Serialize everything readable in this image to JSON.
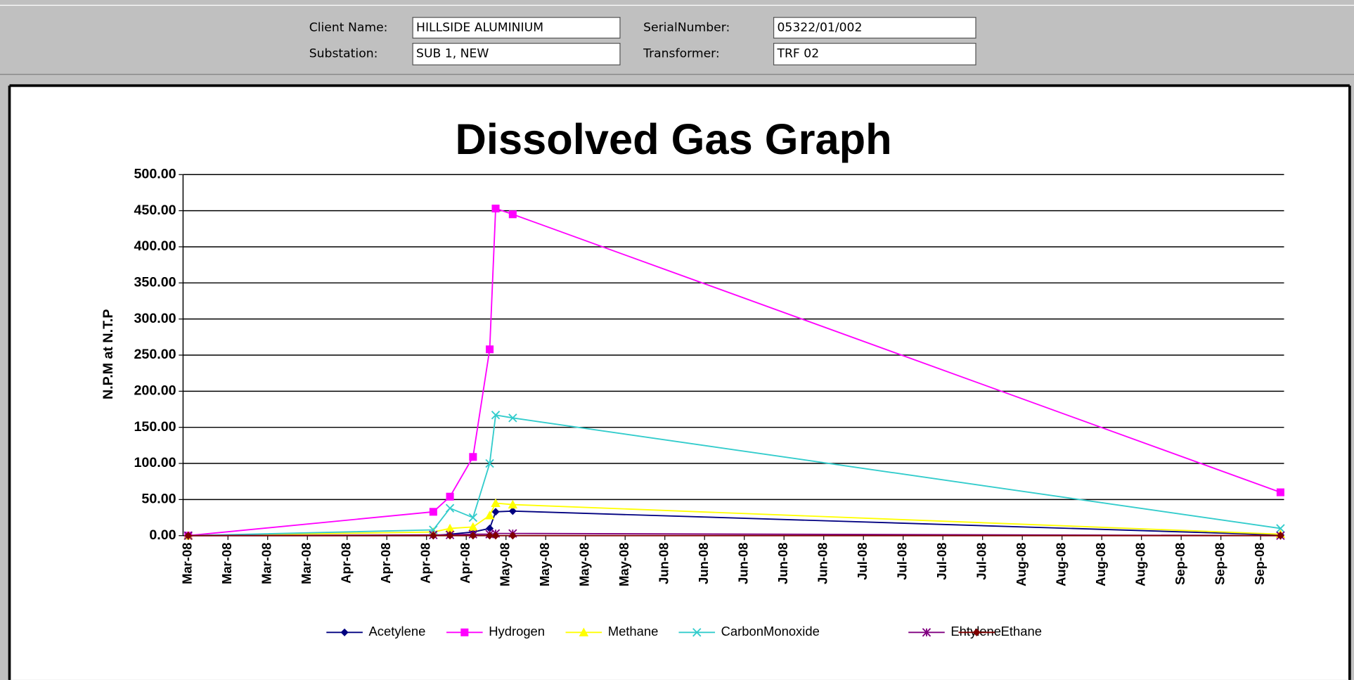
{
  "form": {
    "client_name_label": "Client Name:",
    "client_name": "HILLSIDE ALUMINIUM",
    "substation_label": "Substation:",
    "substation": "SUB 1, NEW",
    "serial_label": "SerialNumber:",
    "serial": "05322/01/002",
    "transformer_label": "Transformer:",
    "transformer": "TRF 02"
  },
  "chart_data": {
    "type": "line",
    "title": "Dissolved Gas Graph",
    "y_label": "N.P.M at N.T.P",
    "grid": true,
    "legend": "bottom",
    "ylim": [
      0,
      500
    ],
    "yticks": [
      {
        "value": 0,
        "label": "0.00"
      },
      {
        "value": 50,
        "label": "50.00"
      },
      {
        "value": 100,
        "label": "100.00"
      },
      {
        "value": 150,
        "label": "150.00"
      },
      {
        "value": 200,
        "label": "200.00"
      },
      {
        "value": 250,
        "label": "250.00"
      },
      {
        "value": 300,
        "label": "300.00"
      },
      {
        "value": 350,
        "label": "350.00"
      },
      {
        "value": 400,
        "label": "400.00"
      },
      {
        "value": 450,
        "label": "450.00"
      },
      {
        "value": 500,
        "label": "500.00"
      }
    ],
    "xlim": [
      -0.13,
      27.59
    ],
    "xticks": [
      {
        "value": 0,
        "label": "Mar-08"
      },
      {
        "value": 1,
        "label": "Mar-08"
      },
      {
        "value": 2,
        "label": "Mar-08"
      },
      {
        "value": 3,
        "label": "Mar-08"
      },
      {
        "value": 4,
        "label": "Apr-08"
      },
      {
        "value": 5,
        "label": "Apr-08"
      },
      {
        "value": 6,
        "label": "Apr-08"
      },
      {
        "value": 7,
        "label": "Apr-08"
      },
      {
        "value": 8,
        "label": "May-08"
      },
      {
        "value": 9,
        "label": "May-08"
      },
      {
        "value": 10,
        "label": "May-08"
      },
      {
        "value": 11,
        "label": "May-08"
      },
      {
        "value": 12,
        "label": "Jun-08"
      },
      {
        "value": 13,
        "label": "Jun-08"
      },
      {
        "value": 14,
        "label": "Jun-08"
      },
      {
        "value": 15,
        "label": "Jun-08"
      },
      {
        "value": 16,
        "label": "Jun-08"
      },
      {
        "value": 17,
        "label": "Jul-08"
      },
      {
        "value": 18,
        "label": "Jul-08"
      },
      {
        "value": 19,
        "label": "Jul-08"
      },
      {
        "value": 20,
        "label": "Jul-08"
      },
      {
        "value": 21,
        "label": "Aug-08"
      },
      {
        "value": 22,
        "label": "Aug-08"
      },
      {
        "value": 23,
        "label": "Aug-08"
      },
      {
        "value": 24,
        "label": "Aug-08"
      },
      {
        "value": 25,
        "label": "Sep-08"
      },
      {
        "value": 26,
        "label": "Sep-08"
      },
      {
        "value": 27,
        "label": "Sep-08"
      }
    ],
    "x": [
      0,
      6.17,
      6.59,
      7.17,
      7.59,
      7.74,
      8.17,
      27.5
    ],
    "series": [
      {
        "name": "Acetylene",
        "color": "#000080",
        "marker": "diamond",
        "values": [
          0,
          0,
          2,
          5,
          10,
          33,
          34,
          1
        ]
      },
      {
        "name": "Hydrogen",
        "color": "#ff00ff",
        "marker": "square",
        "values": [
          0,
          33,
          54,
          109,
          258,
          453,
          445,
          60
        ]
      },
      {
        "name": "Methane",
        "color": "#ffff00",
        "marker": "triangle",
        "values": [
          0,
          5,
          10,
          12,
          28,
          45,
          43,
          2
        ]
      },
      {
        "name": "CarbonMonoxide",
        "color": "#33cccc",
        "marker": "cross",
        "values": [
          0,
          8,
          38,
          25,
          100,
          167,
          163,
          10
        ]
      },
      {
        "name": "Ehtylene",
        "color": "#800080",
        "marker": "star",
        "values": [
          0,
          1,
          1,
          2,
          2,
          3,
          3,
          0
        ]
      },
      {
        "name": "Ethane",
        "color": "#800000",
        "marker": "diamond",
        "values": [
          0,
          0,
          0,
          0,
          0,
          0,
          0,
          0
        ]
      }
    ]
  }
}
